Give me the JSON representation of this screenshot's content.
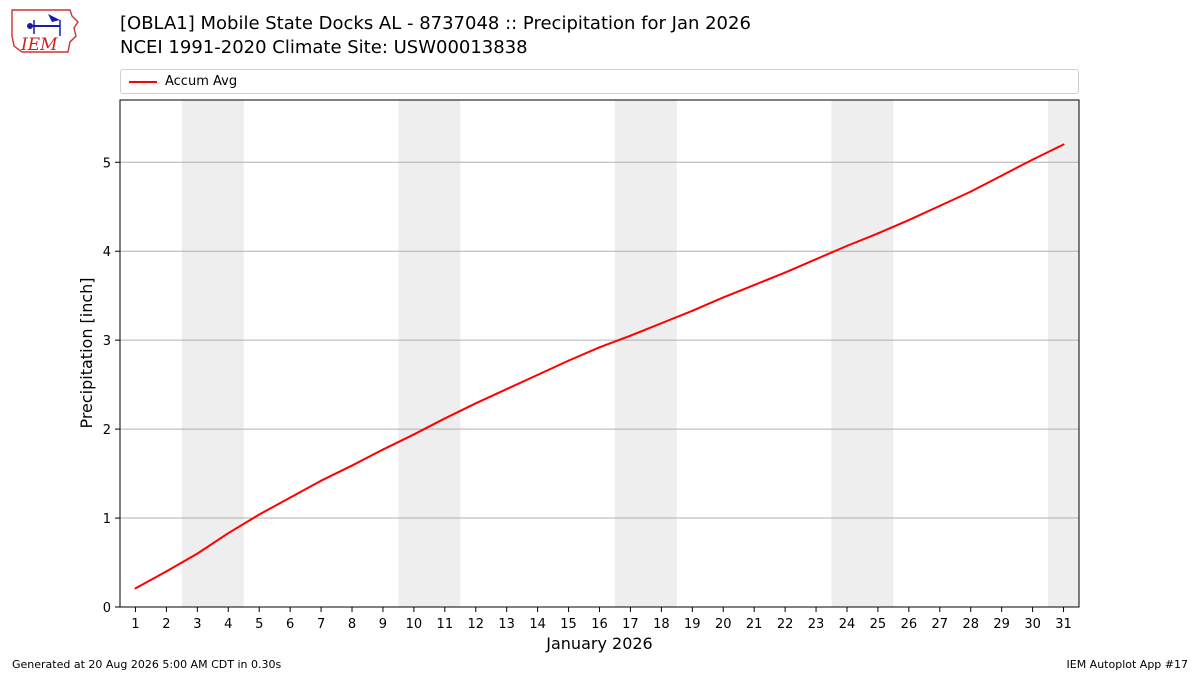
{
  "header": {
    "title": "[OBLA1] Mobile State Docks  AL - 8737048 :: Precipitation for Jan 2026",
    "subtitle": "NCEI 1991-2020 Climate Site: USW00013838",
    "logo_text": "IEM"
  },
  "footer": {
    "left": "Generated at 20 Aug 2026 5:00 AM CDT in 0.30s",
    "right": "IEM Autoplot App #17"
  },
  "colors": {
    "line": "#ff0000",
    "weekend_band": "#eeeeee",
    "grid": "#b0b0b0"
  },
  "chart_data": {
    "type": "line",
    "xlabel": "January 2026",
    "ylabel": "Precipitation [inch]",
    "x": [
      1,
      2,
      3,
      4,
      5,
      6,
      7,
      8,
      9,
      10,
      11,
      12,
      13,
      14,
      15,
      16,
      17,
      18,
      19,
      20,
      21,
      22,
      23,
      24,
      25,
      26,
      27,
      28,
      29,
      30,
      31
    ],
    "xlim": [
      0.5,
      31.5
    ],
    "ylim": [
      0,
      5.7
    ],
    "yticks": [
      0,
      1,
      2,
      3,
      4,
      5
    ],
    "grid": "horizontal",
    "legend_position": "top",
    "weekend_bands": [
      [
        3,
        4
      ],
      [
        10,
        11
      ],
      [
        17,
        18
      ],
      [
        24,
        25
      ],
      [
        31,
        31
      ]
    ],
    "series": [
      {
        "name": "Accum Avg",
        "color": "#ff0000",
        "values": [
          0.21,
          0.4,
          0.6,
          0.83,
          1.04,
          1.23,
          1.42,
          1.59,
          1.77,
          1.94,
          2.12,
          2.29,
          2.45,
          2.61,
          2.77,
          2.92,
          3.05,
          3.19,
          3.33,
          3.48,
          3.62,
          3.76,
          3.91,
          4.06,
          4.2,
          4.35,
          4.51,
          4.67,
          4.85,
          5.03,
          5.2
        ]
      }
    ]
  }
}
